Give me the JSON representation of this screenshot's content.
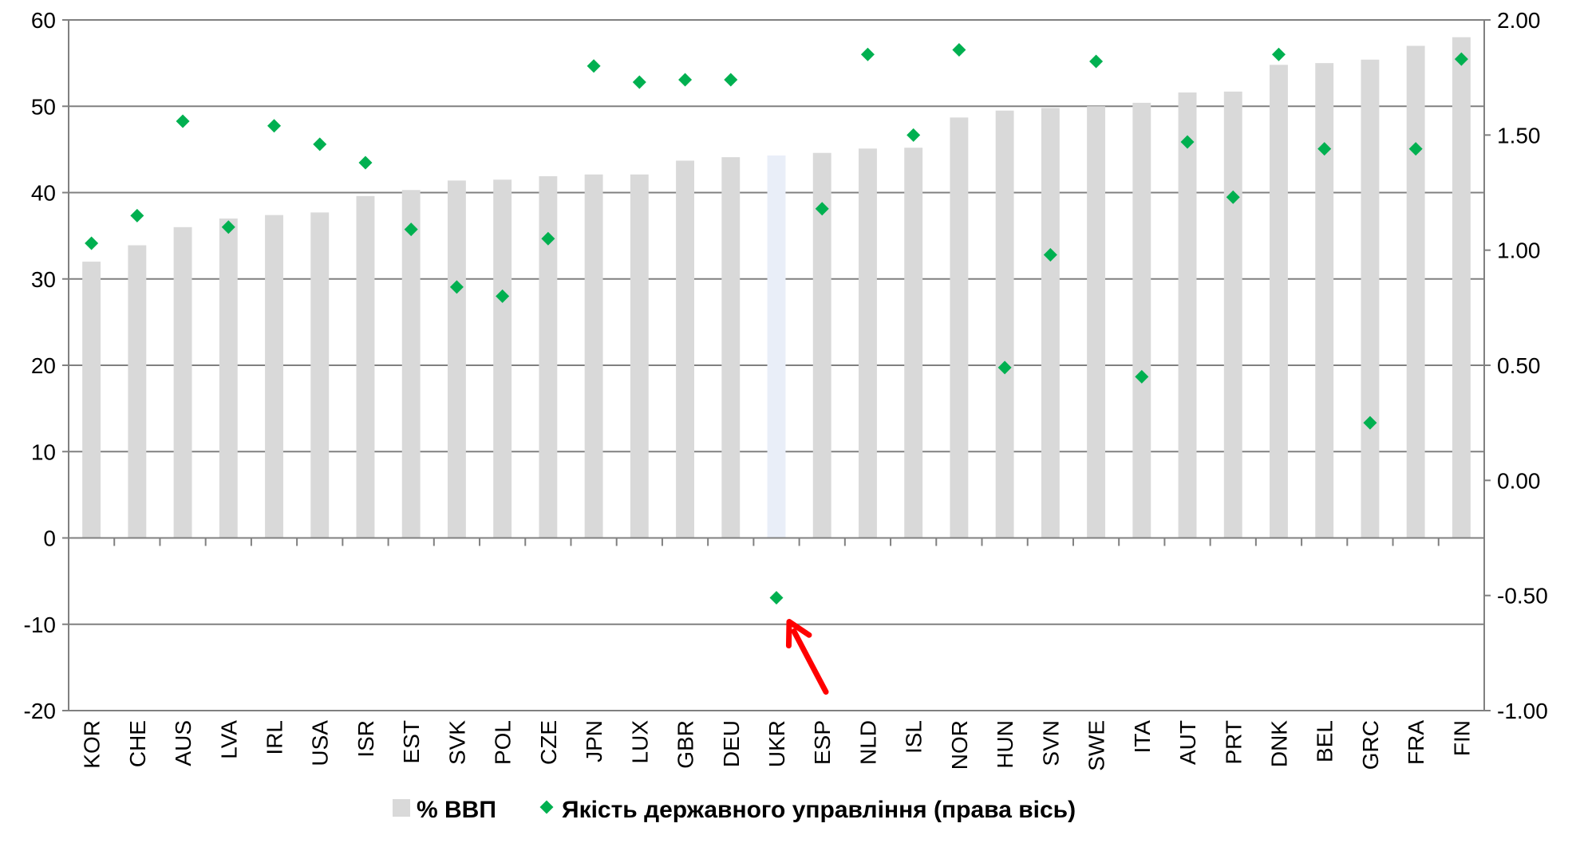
{
  "chart_data": {
    "type": "bar",
    "categories": [
      "KOR",
      "CHE",
      "AUS",
      "LVA",
      "IRL",
      "USA",
      "ISR",
      "EST",
      "SVK",
      "POL",
      "CZE",
      "JPN",
      "LUX",
      "GBR",
      "DEU",
      "UKR",
      "ESP",
      "NLD",
      "ISL",
      "NOR",
      "HUN",
      "SVN",
      "SWE",
      "ITA",
      "AUT",
      "PRT",
      "DNK",
      "BEL",
      "GRC",
      "FRA",
      "FIN"
    ],
    "series": [
      {
        "name": "% ВВП",
        "axis": "left",
        "kind": "bar",
        "color": "#d9d9d9",
        "highlight": {
          "category": "UKR",
          "color": "#e9eef8"
        },
        "values": [
          32.0,
          33.9,
          36.0,
          37.0,
          37.4,
          37.7,
          39.6,
          40.3,
          41.4,
          41.5,
          41.9,
          42.1,
          42.1,
          43.7,
          44.1,
          44.3,
          44.6,
          45.1,
          45.2,
          48.7,
          49.5,
          49.8,
          50.0,
          50.4,
          51.6,
          51.7,
          54.8,
          55.0,
          55.4,
          57.0,
          58.0
        ]
      },
      {
        "name": "Якість державного управління (права вісь)",
        "axis": "right",
        "kind": "marker",
        "color": "#00b050",
        "values": [
          1.03,
          1.15,
          1.56,
          1.1,
          1.54,
          1.46,
          1.38,
          1.09,
          0.84,
          0.8,
          1.05,
          1.8,
          1.73,
          1.74,
          1.74,
          -0.51,
          1.18,
          1.85,
          1.5,
          1.87,
          0.49,
          0.98,
          1.82,
          0.45,
          1.47,
          1.23,
          1.85,
          1.44,
          0.25,
          1.44,
          1.83
        ]
      }
    ],
    "left_axis": {
      "min": -20,
      "max": 60,
      "ticks": [
        "-20",
        "-10",
        "0",
        "10",
        "20",
        "30",
        "40",
        "50",
        "60"
      ]
    },
    "right_axis": {
      "min": -1.0,
      "max": 2.0,
      "ticks": [
        "-1.00",
        "-0.50",
        "0.00",
        "0.50",
        "1.00",
        "1.50",
        "2.00"
      ]
    },
    "grid": true,
    "legend_position": "bottom",
    "annotation": {
      "type": "arrow",
      "color": "#ff0000",
      "points_to": "UKR"
    }
  }
}
